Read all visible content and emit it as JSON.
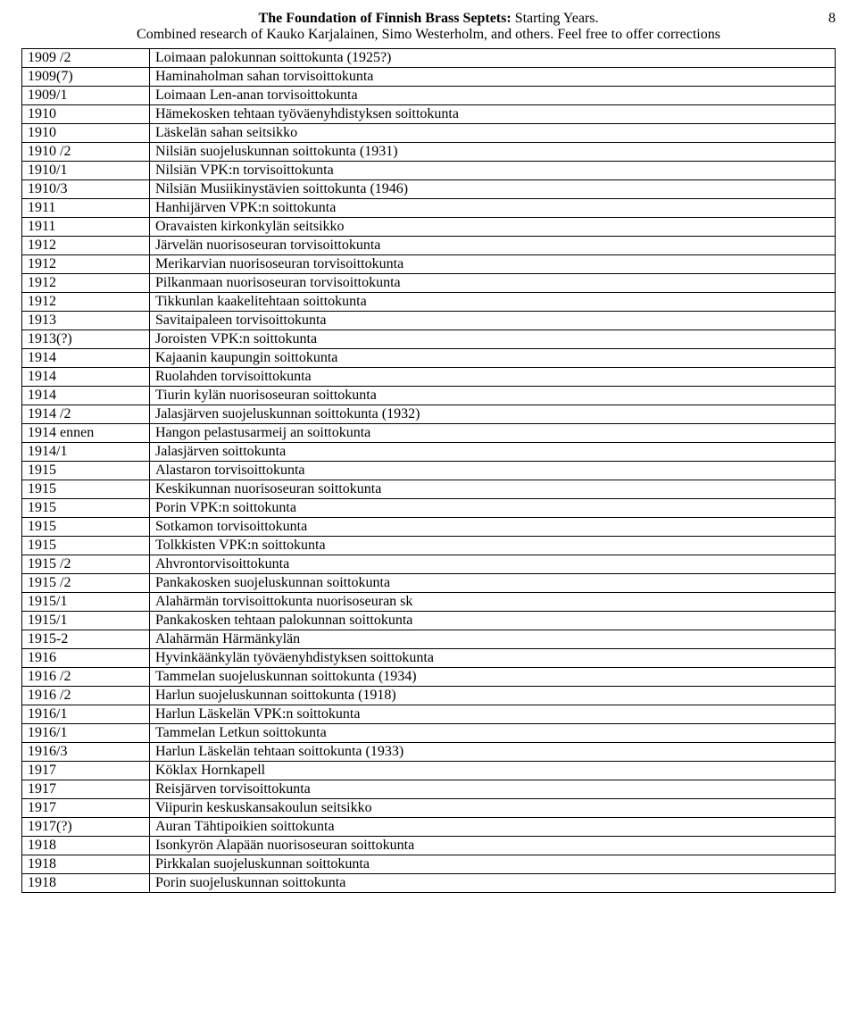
{
  "header": {
    "title_bold": "The Foundation of Finnish Brass Septets:",
    "title_rest": " Starting Years.",
    "subtitle": "Combined research of Kauko Karjalainen, Simo Westerholm, and others. Feel free to offer corrections",
    "page_number": "8"
  },
  "rows": [
    {
      "year": "1909 /2",
      "name": "Loimaan palokunnan soittokunta (1925?)"
    },
    {
      "year": "1909(7)",
      "name": "Haminaholman sahan torvisoittokunta"
    },
    {
      "year": "1909/1",
      "name": "Loimaan Len-anan torvisoittokunta"
    },
    {
      "year": "1910",
      "name": "Hämekosken tehtaan työväenyhdistyksen soittokunta"
    },
    {
      "year": "1910",
      "name": "Läskelän sahan seitsikko"
    },
    {
      "year": "1910 /2",
      "name": "Nilsiän suojeluskunnan soittokunta (1931)"
    },
    {
      "year": "1910/1",
      "name": "Nilsiän VPK:n torvisoittokunta"
    },
    {
      "year": "1910/3",
      "name": "Nilsiän Musiikinystävien soittokunta (1946)"
    },
    {
      "year": "1911",
      "name": "Hanhijärven VPK:n soittokunta"
    },
    {
      "year": "1911",
      "name": "Oravaisten kirkonkylän seitsikko"
    },
    {
      "year": "1912",
      "name": "Järvelän nuorisoseuran torvisoittokunta"
    },
    {
      "year": "1912",
      "name": "Merikarvian nuorisoseuran torvisoittokunta"
    },
    {
      "year": "1912",
      "name": "Pilkanmaan nuorisoseuran torvisoittokunta"
    },
    {
      "year": "1912",
      "name": "Tikkunlan kaakelitehtaan soittokunta"
    },
    {
      "year": "1913",
      "name": "Savitaipaleen torvisoittokunta"
    },
    {
      "year": "1913(?)",
      "name": "Joroisten VPK:n soittokunta"
    },
    {
      "year": "1914",
      "name": "Kajaanin kaupungin soittokunta"
    },
    {
      "year": "1914",
      "name": "Ruolahden torvisoittokunta"
    },
    {
      "year": "1914",
      "name": "Tiurin kylän nuorisoseuran soittokunta"
    },
    {
      "year": "1914 /2",
      "name": "Jalasjärven suojeluskunnan soittokunta (1932)"
    },
    {
      "year": "1914 ennen",
      "name": "Hangon pelastusarmeij an soittokunta"
    },
    {
      "year": "1914/1",
      "name": "Jalasjärven soittokunta"
    },
    {
      "year": "1915",
      "name": "Alastaron torvisoittokunta"
    },
    {
      "year": "1915",
      "name": "Keskikunnan nuorisoseuran soittokunta"
    },
    {
      "year": "1915",
      "name": "Porin VPK:n soittokunta"
    },
    {
      "year": "1915",
      "name": "Sotkamon torvisoittokunta"
    },
    {
      "year": "1915",
      "name": "Tolkkisten VPK:n soittokunta"
    },
    {
      "year": "1915 /2",
      "name": "Ahvrontorvisoittokunta"
    },
    {
      "year": "1915 /2",
      "name": "Pankakosken suojeluskunnan soittokunta"
    },
    {
      "year": "1915/1",
      "name": "Alahärmän torvisoittokunta nuorisoseuran sk"
    },
    {
      "year": "1915/1",
      "name": "Pankakosken tehtaan palokunnan soittokunta"
    },
    {
      "year": "1915-2",
      "name": "Alahärmän  Härmänkylän"
    },
    {
      "year": "1916",
      "name": "Hyvinkäänkylän työväenyhdistyksen soittokunta"
    },
    {
      "year": "1916  /2",
      "name": "Tammelan suojeluskunnan soittokunta (1934)"
    },
    {
      "year": "1916 /2",
      "name": "Harlun suojeluskunnan soittokunta (1918)"
    },
    {
      "year": "1916/1",
      "name": "Harlun Läskelän VPK:n soittokunta"
    },
    {
      "year": "1916/1",
      "name": "Tammelan Letkun soittokunta"
    },
    {
      "year": "1916/3",
      "name": "Harlun Läskelän tehtaan soittokunta (1933)"
    },
    {
      "year": "1917",
      "name": "Köklax Hornkapell"
    },
    {
      "year": "1917",
      "name": "Reisjärven torvisoittokunta"
    },
    {
      "year": "1917",
      "name": "Viipurin keskuskansakoulun seitsikko"
    },
    {
      "year": "1917(?)",
      "name": "Auran Tähtipoikien soittokunta"
    },
    {
      "year": "1918",
      "name": "Isonkyrön Alapään nuorisoseuran soittokunta"
    },
    {
      "year": "1918",
      "name": "Pirkkalan suojeluskunnan soittokunta"
    },
    {
      "year": "1918",
      "name": "Porin suojeluskunnan soittokunta"
    }
  ]
}
